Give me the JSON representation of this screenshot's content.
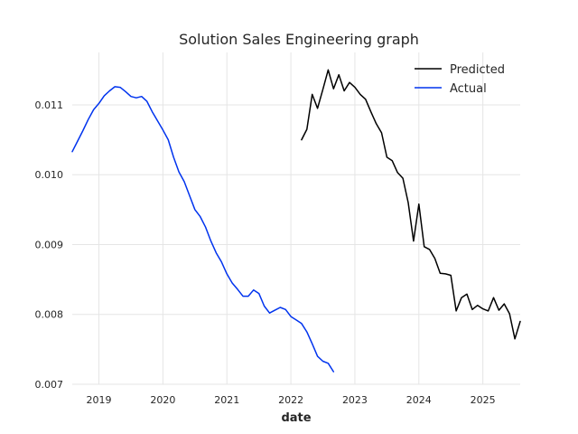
{
  "chart_data": {
    "type": "line",
    "title": "Solution Sales Engineering graph",
    "xlabel": "date",
    "ylabel": "",
    "xlim": [
      "2018-08-01",
      "2025-08-01"
    ],
    "ylim": [
      0.007,
      0.01175
    ],
    "x_ticks": [
      "2019",
      "2020",
      "2021",
      "2022",
      "2023",
      "2024",
      "2025"
    ],
    "y_ticks": [
      "0.007",
      "0.008",
      "0.009",
      "0.010",
      "0.011"
    ],
    "grid": true,
    "legend_position": "top-right",
    "series": [
      {
        "name": "Predicted",
        "color": "#000000",
        "points": [
          [
            "2022-03",
            0.0105
          ],
          [
            "2022-04",
            0.01065
          ],
          [
            "2022-05",
            0.01115
          ],
          [
            "2022-06",
            0.01095
          ],
          [
            "2022-07",
            0.01122
          ],
          [
            "2022-08",
            0.0115
          ],
          [
            "2022-09",
            0.01123
          ],
          [
            "2022-10",
            0.01143
          ],
          [
            "2022-11",
            0.0112
          ],
          [
            "2022-12",
            0.01132
          ],
          [
            "2023-01",
            0.01125
          ],
          [
            "2023-02",
            0.01115
          ],
          [
            "2023-03",
            0.01108
          ],
          [
            "2023-04",
            0.0109
          ],
          [
            "2023-05",
            0.01073
          ],
          [
            "2023-06",
            0.0106
          ],
          [
            "2023-07",
            0.01025
          ],
          [
            "2023-08",
            0.0102
          ],
          [
            "2023-09",
            0.01003
          ],
          [
            "2023-10",
            0.00995
          ],
          [
            "2023-11",
            0.0096
          ],
          [
            "2023-12",
            0.00905
          ],
          [
            "2024-01",
            0.00958
          ],
          [
            "2024-02",
            0.00897
          ],
          [
            "2024-03",
            0.00893
          ],
          [
            "2024-04",
            0.0088
          ],
          [
            "2024-05",
            0.00859
          ],
          [
            "2024-06",
            0.00858
          ],
          [
            "2024-07",
            0.00856
          ],
          [
            "2024-08",
            0.00805
          ],
          [
            "2024-09",
            0.00824
          ],
          [
            "2024-10",
            0.00829
          ],
          [
            "2024-11",
            0.00807
          ],
          [
            "2024-12",
            0.00813
          ],
          [
            "2025-01",
            0.00808
          ],
          [
            "2025-02",
            0.00805
          ],
          [
            "2025-03",
            0.00824
          ],
          [
            "2025-04",
            0.00806
          ],
          [
            "2025-05",
            0.00815
          ],
          [
            "2025-06",
            0.00801
          ],
          [
            "2025-07",
            0.00765
          ],
          [
            "2025-08",
            0.0079
          ]
        ]
      },
      {
        "name": "Actual",
        "color": "#0033ee",
        "points": [
          [
            "2018-08",
            0.01033
          ],
          [
            "2018-09",
            0.01048
          ],
          [
            "2018-10",
            0.01063
          ],
          [
            "2018-11",
            0.01079
          ],
          [
            "2018-12",
            0.01093
          ],
          [
            "2019-01",
            0.01102
          ],
          [
            "2019-02",
            0.01113
          ],
          [
            "2019-03",
            0.0112
          ],
          [
            "2019-04",
            0.01126
          ],
          [
            "2019-05",
            0.01125
          ],
          [
            "2019-06",
            0.01119
          ],
          [
            "2019-07",
            0.01112
          ],
          [
            "2019-08",
            0.0111
          ],
          [
            "2019-09",
            0.01112
          ],
          [
            "2019-10",
            0.01105
          ],
          [
            "2019-11",
            0.0109
          ],
          [
            "2019-12",
            0.01077
          ],
          [
            "2020-01",
            0.01064
          ],
          [
            "2020-02",
            0.0105
          ],
          [
            "2020-03",
            0.01025
          ],
          [
            "2020-04",
            0.01004
          ],
          [
            "2020-05",
            0.0099
          ],
          [
            "2020-06",
            0.0097
          ],
          [
            "2020-07",
            0.0095
          ],
          [
            "2020-08",
            0.0094
          ],
          [
            "2020-09",
            0.00925
          ],
          [
            "2020-10",
            0.00905
          ],
          [
            "2020-11",
            0.00888
          ],
          [
            "2020-12",
            0.00875
          ],
          [
            "2021-01",
            0.00858
          ],
          [
            "2021-02",
            0.00845
          ],
          [
            "2021-03",
            0.00836
          ],
          [
            "2021-04",
            0.00826
          ],
          [
            "2021-05",
            0.00826
          ],
          [
            "2021-06",
            0.00835
          ],
          [
            "2021-07",
            0.0083
          ],
          [
            "2021-08",
            0.00812
          ],
          [
            "2021-09",
            0.00802
          ],
          [
            "2021-10",
            0.00806
          ],
          [
            "2021-11",
            0.0081
          ],
          [
            "2021-12",
            0.00807
          ],
          [
            "2022-01",
            0.00797
          ],
          [
            "2022-02",
            0.00792
          ],
          [
            "2022-03",
            0.00787
          ],
          [
            "2022-04",
            0.00775
          ],
          [
            "2022-05",
            0.00758
          ],
          [
            "2022-06",
            0.0074
          ],
          [
            "2022-07",
            0.00733
          ],
          [
            "2022-08",
            0.0073
          ],
          [
            "2022-09",
            0.00718
          ]
        ]
      }
    ]
  }
}
